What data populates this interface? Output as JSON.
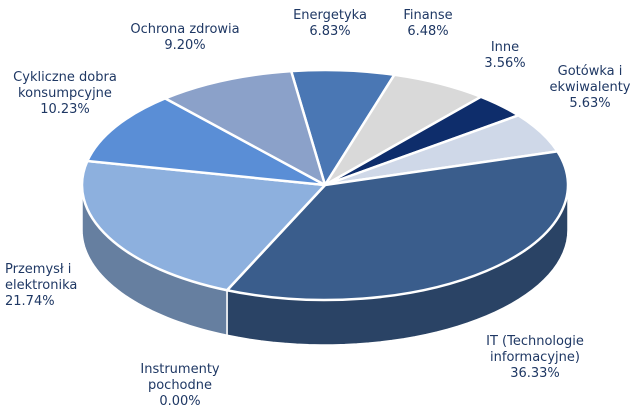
{
  "chart_data": {
    "type": "pie3d",
    "categories": [
      "Energetyka",
      "Finanse",
      "Inne",
      "Gotówka i ekwiwalenty",
      "IT (Technologie informacyjne)",
      "Instrumenty pochodne",
      "Przemysł i elektronika",
      "Cykliczne dobra konsumpcyjne",
      "Ochrona zdrowia"
    ],
    "values": [
      6.83,
      6.48,
      3.56,
      5.63,
      36.33,
      0.0,
      21.74,
      10.23,
      9.2
    ],
    "value_labels": [
      "6.83%",
      "6.48%",
      "3.56%",
      "5.63%",
      "36.33%",
      "0.00%",
      "21.74%",
      "10.23%",
      "9.20%"
    ],
    "colors": [
      "#4a77b4",
      "#d9d9d9",
      "#0e2d6b",
      "#cfd8e8",
      "#3a5d8c",
      "#7f7f7f",
      "#8db0de",
      "#5a8ed6",
      "#8ba1c9"
    ]
  }
}
